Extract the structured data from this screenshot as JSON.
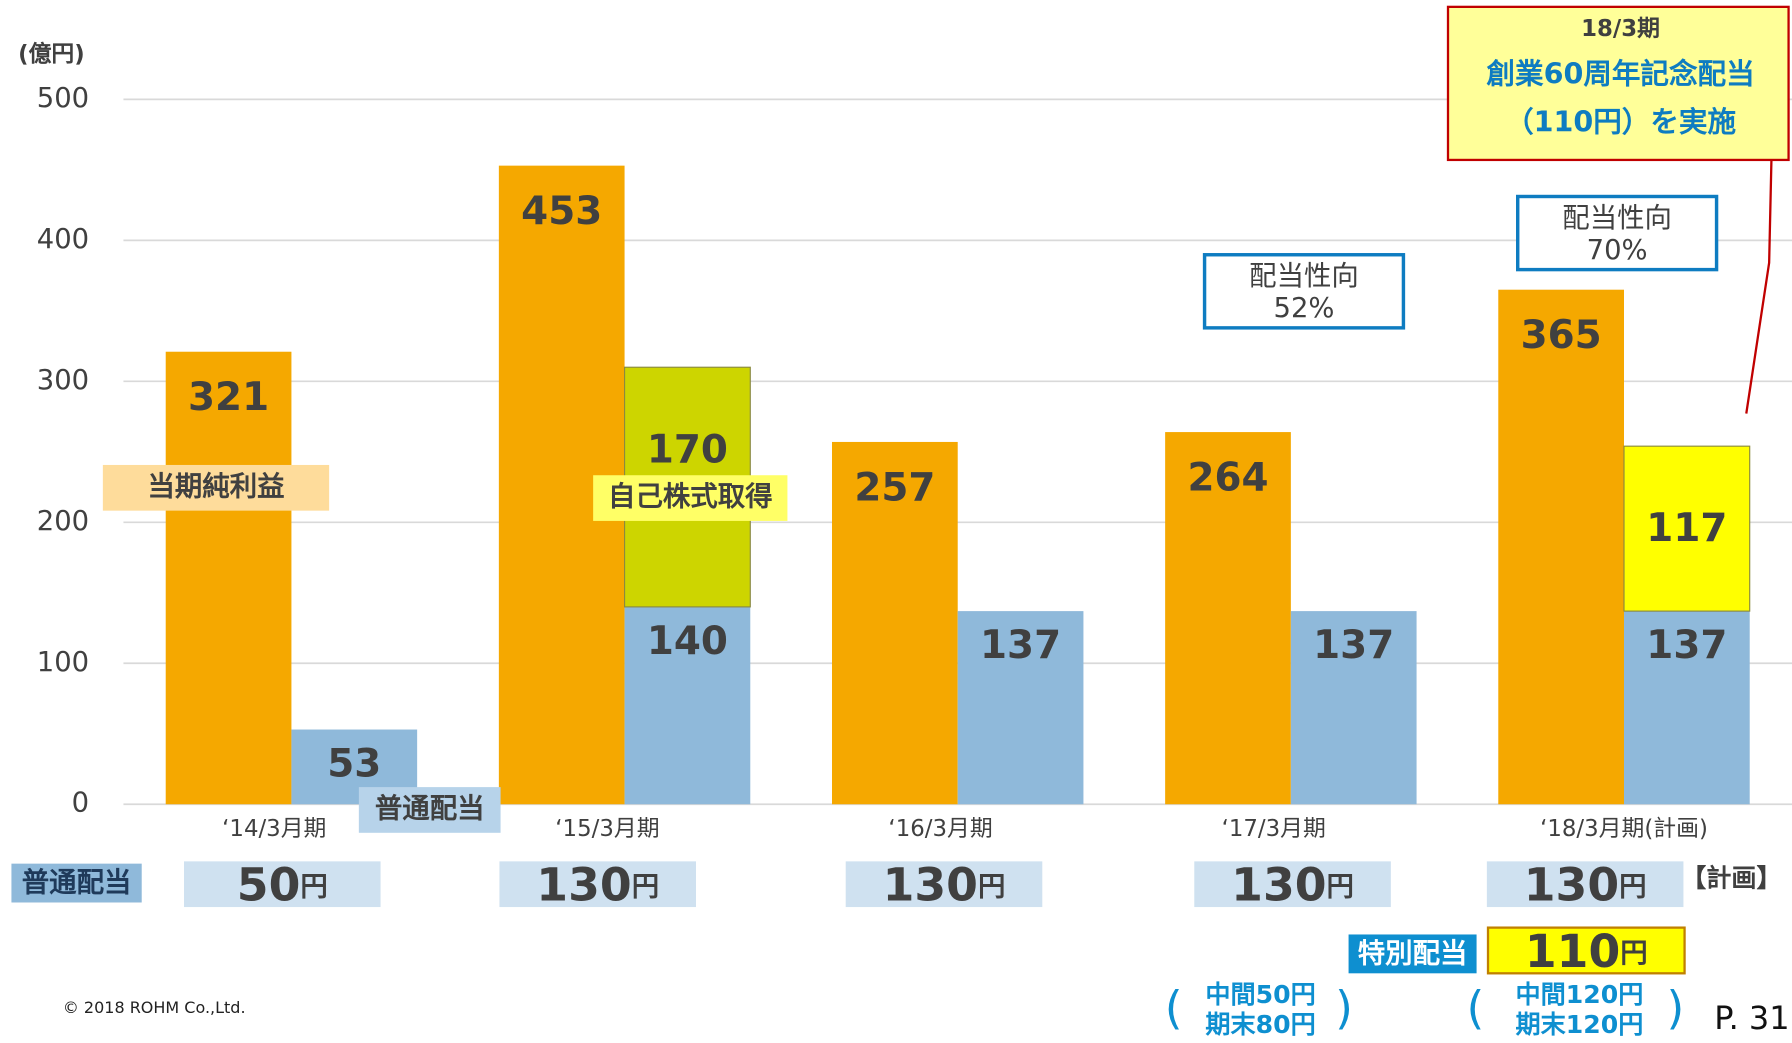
{
  "chart_data": {
    "type": "bar",
    "unit_label": "(億円)",
    "categories": [
      "‘14/3月期",
      "‘15/3月期",
      "‘16/3月期",
      "‘17/3月期",
      "‘18/3月期(計画)"
    ],
    "series": [
      {
        "name": "当期純利益",
        "color": "#f5a800",
        "values": [
          321,
          453,
          257,
          264,
          365
        ]
      },
      {
        "name": "普通配当",
        "color": "#8fb9da",
        "values": [
          53,
          140,
          137,
          137,
          137
        ]
      },
      {
        "name": "自己株式取得",
        "color": "#cdd500",
        "stack_on": "普通配当",
        "values": [
          null,
          170,
          null,
          null,
          null
        ]
      },
      {
        "name": "特別配当",
        "color": "#ffff00",
        "stack_on": "普通配当",
        "values": [
          null,
          null,
          null,
          null,
          117
        ]
      }
    ],
    "ylim": [
      0,
      500
    ],
    "yticks": [
      0,
      100,
      200,
      300,
      400,
      500
    ],
    "grid": true,
    "annotations": [
      {
        "title": "配当性向",
        "value": "52%"
      },
      {
        "title": "配当性向",
        "value": "70%"
      }
    ],
    "callout": {
      "period": "18/3期",
      "line1": "創業60周年記念配当",
      "line2": "（110円）を実施"
    }
  },
  "dividend_table": {
    "row_label": "普通配当",
    "unit": "円",
    "amounts": [
      "50",
      "130",
      "130",
      "130",
      "130"
    ],
    "plan_note": "【計画】",
    "special_amount": "110",
    "breakdowns": [
      [
        "中間50円",
        "期末80円"
      ],
      [
        "中間120円",
        "期末120円"
      ]
    ]
  },
  "footer": {
    "copyright": "© 2018 ROHM Co.,Ltd.",
    "page": "P. 31"
  }
}
